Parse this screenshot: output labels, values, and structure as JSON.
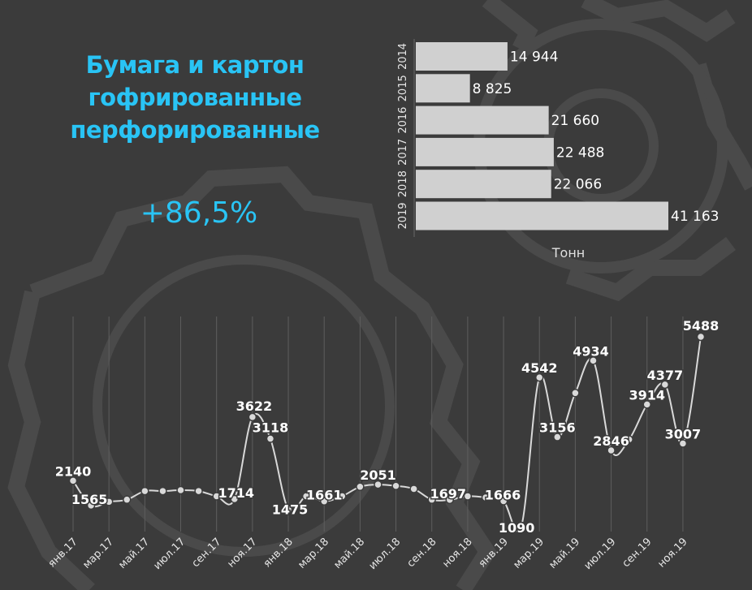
{
  "title_lines": [
    "Бумага и картон",
    "гофрированные",
    "перфорированные"
  ],
  "growth": "+86,5%",
  "colors": {
    "accent": "#29c4f5",
    "background": "#3b3b3b",
    "bars": "#d0d0d0",
    "line": "#d9d9d9"
  },
  "chart_data": [
    {
      "type": "bar",
      "orientation": "horizontal",
      "categories": [
        "2014",
        "2015",
        "2016",
        "2017",
        "2018",
        "2019"
      ],
      "values": [
        14944,
        8825,
        21660,
        22488,
        22066,
        41163
      ],
      "value_labels": [
        "14 944",
        "8 825",
        "21 660",
        "22 488",
        "22 066",
        "41 163"
      ],
      "xlabel": "Тонн",
      "xlim": [
        0,
        41163
      ]
    },
    {
      "type": "line",
      "x_tick_labels": [
        "янв.17",
        "мар.17",
        "май.17",
        "июл.17",
        "сен.17",
        "ноя.17",
        "янв.18",
        "мар.18",
        "май.18",
        "июл.18",
        "сен.18",
        "ноя.18",
        "янв.19",
        "мар.19",
        "май.19",
        "июл.19",
        "сен.19",
        "ноя.19"
      ],
      "values": [
        2140,
        1565,
        1650,
        1700,
        1900,
        1900,
        1920,
        1900,
        1780,
        1714,
        3622,
        3118,
        1475,
        1780,
        1661,
        1780,
        2000,
        2051,
        2020,
        1950,
        1700,
        1697,
        1780,
        1750,
        1666,
        1090,
        4542,
        3156,
        4180,
        4934,
        2846,
        3100,
        3914,
        4377,
        3007,
        5488
      ],
      "point_labels": [
        {
          "index": 0,
          "text": "2140"
        },
        {
          "index": 1,
          "text": "1565"
        },
        {
          "index": 9,
          "text": "1714"
        },
        {
          "index": 10,
          "text": "3622"
        },
        {
          "index": 11,
          "text": "3118"
        },
        {
          "index": 12,
          "text": "1475"
        },
        {
          "index": 14,
          "text": "1661"
        },
        {
          "index": 17,
          "text": "2051"
        },
        {
          "index": 21,
          "text": "1697"
        },
        {
          "index": 24,
          "text": "1666"
        },
        {
          "index": 25,
          "text": "1090"
        },
        {
          "index": 26,
          "text": "4542"
        },
        {
          "index": 27,
          "text": "3156"
        },
        {
          "index": 29,
          "text": "4934"
        },
        {
          "index": 30,
          "text": "2846"
        },
        {
          "index": 32,
          "text": "3914"
        },
        {
          "index": 33,
          "text": "4377"
        },
        {
          "index": 34,
          "text": "3007"
        },
        {
          "index": 35,
          "text": "5488"
        }
      ],
      "grid": "vertical"
    }
  ]
}
